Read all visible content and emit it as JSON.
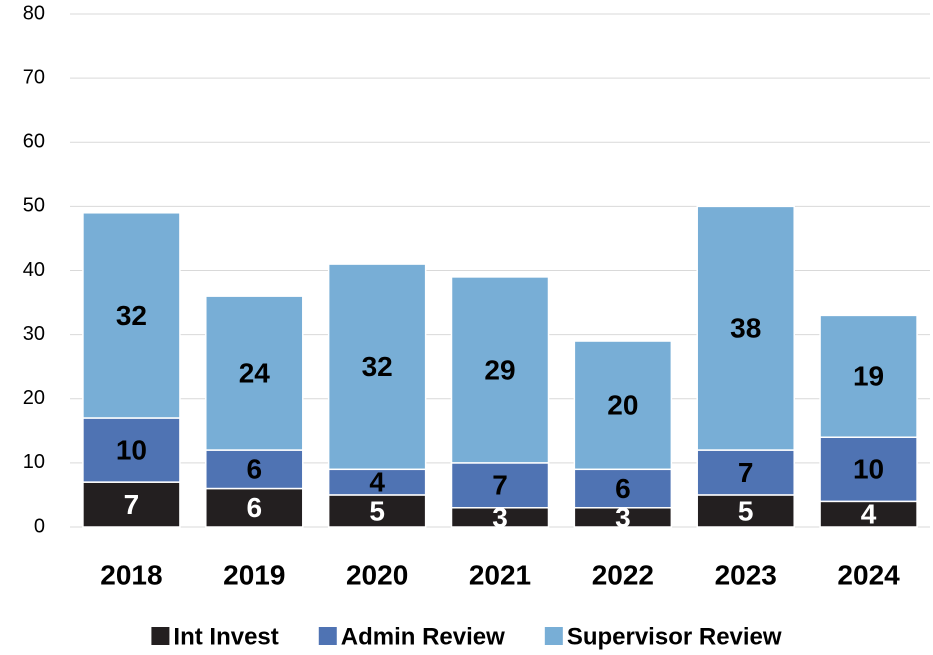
{
  "chart_data": {
    "type": "stacked_bar",
    "categories": [
      "2018",
      "2019",
      "2020",
      "2021",
      "2022",
      "2023",
      "2024"
    ],
    "series": [
      {
        "name": "Int Invest",
        "color": "#231f20",
        "values": [
          7,
          6,
          5,
          3,
          3,
          5,
          4
        ]
      },
      {
        "name": "Admin Review",
        "color": "#4f73b3",
        "values": [
          10,
          6,
          4,
          7,
          6,
          7,
          10
        ]
      },
      {
        "name": "Supervisor Review",
        "color": "#78aed6",
        "values": [
          32,
          24,
          32,
          29,
          20,
          38,
          19
        ]
      }
    ],
    "ylim": [
      0,
      80
    ],
    "yticks": [
      0,
      10,
      20,
      30,
      40,
      50,
      60,
      70,
      80
    ],
    "grid": true,
    "legend": "bottom"
  }
}
